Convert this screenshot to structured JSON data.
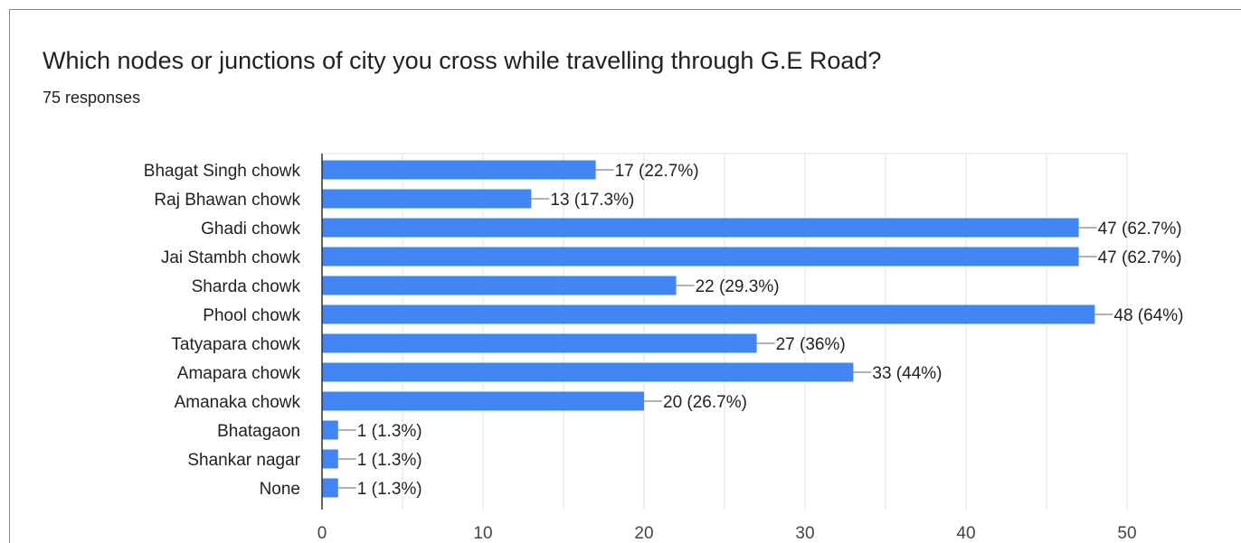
{
  "question": "Which nodes or junctions of city you cross while travelling through G.E Road?",
  "responses": "75 responses",
  "colors": {
    "bar": "#4285f4",
    "grid": "#e0e0e0",
    "axis": "#333333",
    "leader": "#666666"
  },
  "chart_data": {
    "type": "bar",
    "orientation": "horizontal",
    "categories": [
      "Bhagat Singh chowk",
      "Raj Bhawan chowk",
      "Ghadi chowk",
      "Jai Stambh chowk",
      "Sharda chowk",
      "Phool chowk",
      "Tatyapara chowk",
      "Amapara chowk",
      "Amanaka chowk",
      "Bhatagaon",
      "Shankar nagar",
      "None"
    ],
    "values": [
      17,
      13,
      47,
      47,
      22,
      48,
      27,
      33,
      20,
      1,
      1,
      1
    ],
    "data_labels": [
      "17 (22.7%)",
      "13 (17.3%)",
      "47 (62.7%)",
      "47 (62.7%)",
      "22 (29.3%)",
      "48 (64%)",
      "27 (36%)",
      "33 (44%)",
      "20 (26.7%)",
      "1 (1.3%)",
      "1 (1.3%)",
      "1 (1.3%)"
    ],
    "xlim": [
      0,
      50
    ],
    "xticks": [
      "0",
      "10",
      "20",
      "30",
      "40",
      "50"
    ],
    "grid": true
  }
}
